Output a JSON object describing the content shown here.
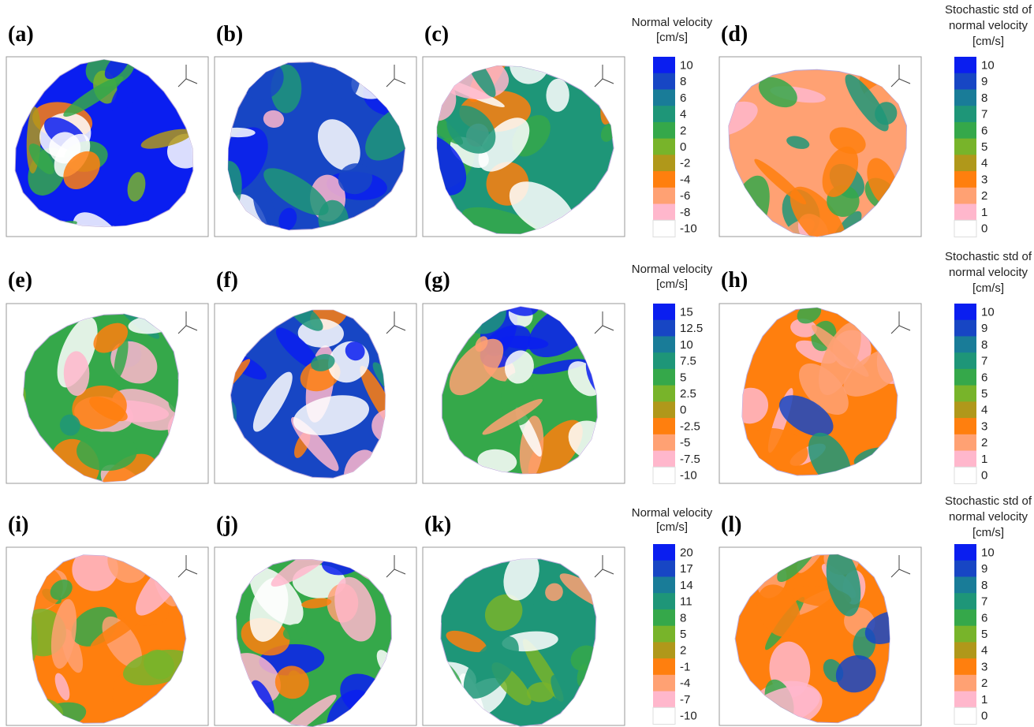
{
  "panels": [
    {
      "label": "(a)"
    },
    {
      "label": "(b)"
    },
    {
      "label": "(c)"
    },
    {
      "label": "(d)"
    },
    {
      "label": "(e)"
    },
    {
      "label": "(f)"
    },
    {
      "label": "(g)"
    },
    {
      "label": "(h)"
    },
    {
      "label": "(i)"
    },
    {
      "label": "(j)"
    },
    {
      "label": "(k)"
    },
    {
      "label": "(l)"
    }
  ],
  "colorbars": [
    {
      "title": [
        "Normal velocity",
        "[cm/s]"
      ],
      "ticks": [
        "10",
        "8",
        "6",
        "4",
        "2",
        "0",
        "-2",
        "-4",
        "-6",
        "-8",
        "-10"
      ]
    },
    {
      "title": [
        "Stochastic std of",
        "normal velocity",
        "[cm/s]"
      ],
      "ticks": [
        "10",
        "9",
        "8",
        "7",
        "6",
        "5",
        "4",
        "3",
        "2",
        "1",
        "0"
      ]
    },
    {
      "title": [
        "Normal velocity",
        "[cm/s]"
      ],
      "ticks": [
        "15",
        "12.5",
        "10",
        "7.5",
        "5",
        "2.5",
        "0",
        "-2.5",
        "-5",
        "-7.5",
        "-10"
      ]
    },
    {
      "title": [
        "Stochastic std of",
        "normal velocity",
        "[cm/s]"
      ],
      "ticks": [
        "10",
        "9",
        "8",
        "7",
        "6",
        "5",
        "4",
        "3",
        "2",
        "1",
        "0"
      ]
    },
    {
      "title": [
        "Normal velocity",
        "[cm/s]"
      ],
      "ticks": [
        "20",
        "17",
        "14",
        "11",
        "8",
        "5",
        "2",
        "-1",
        "-4",
        "-7",
        "-10"
      ]
    },
    {
      "title": [
        "Stochastic std of",
        "normal velocity",
        "[cm/s]"
      ],
      "ticks": [
        "10",
        "9",
        "8",
        "7",
        "6",
        "5",
        "4",
        "3",
        "2",
        "1",
        "0"
      ]
    }
  ],
  "colors": [
    "#0a1ef0",
    "#1746c4",
    "#197c98",
    "#1e9678",
    "#35a84a",
    "#78b42a",
    "#b0981a",
    "#ff7f0e",
    "#ffa173",
    "#ffb7cc",
    "#ffffff"
  ]
}
